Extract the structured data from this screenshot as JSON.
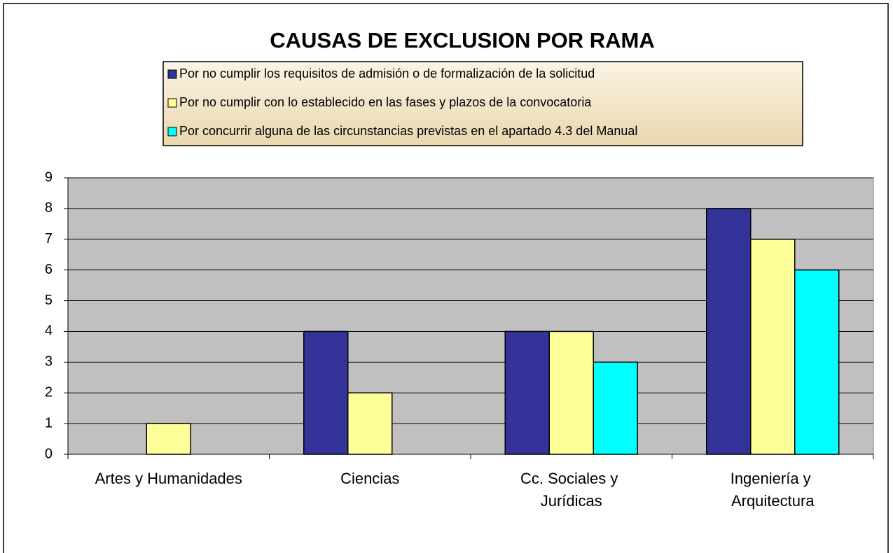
{
  "chart_data": {
    "type": "bar",
    "title": "CAUSAS DE EXCLUSION POR RAMA",
    "categories": [
      "Artes y Humanidades",
      "Ciencias",
      "Cc. Sociales y Jurídicas",
      "Ingeniería y Arquitectura"
    ],
    "series": [
      {
        "name": "Por no cumplir los requisitos de admisión o de formalización de la solicitud",
        "color": "#333399",
        "values": [
          0,
          4,
          4,
          8
        ]
      },
      {
        "name": "Por no cumplir con lo establecido en las fases y plazos de la convocatoria",
        "color": "#ffff99",
        "values": [
          1,
          2,
          4,
          7
        ]
      },
      {
        "name": "Por concurrir alguna de las circunstancias previstas en el apartado 4.3 del Manual",
        "color": "#00ffff",
        "values": [
          0,
          0,
          3,
          6
        ]
      }
    ],
    "ylim": [
      0,
      9
    ],
    "yticks": [
      0,
      1,
      2,
      3,
      4,
      5,
      6,
      7,
      8,
      9
    ],
    "grid": true
  }
}
